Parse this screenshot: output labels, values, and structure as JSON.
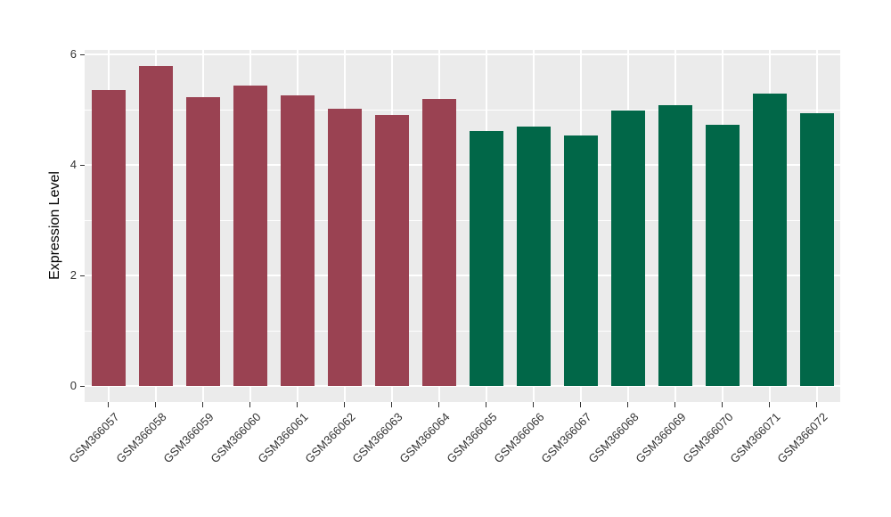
{
  "chart_data": {
    "type": "bar",
    "title": "",
    "xlabel": "",
    "ylabel": "Expression Level",
    "categories": [
      "GSM366057",
      "GSM366058",
      "GSM366059",
      "GSM366060",
      "GSM366061",
      "GSM366062",
      "GSM366063",
      "GSM366064",
      "GSM366065",
      "GSM366066",
      "GSM366067",
      "GSM366068",
      "GSM366069",
      "GSM366070",
      "GSM366071",
      "GSM366072"
    ],
    "values": [
      5.36,
      5.79,
      5.23,
      5.44,
      5.26,
      5.01,
      4.9,
      5.2,
      4.61,
      4.69,
      4.53,
      4.98,
      5.08,
      4.73,
      5.29,
      4.94
    ],
    "colors": [
      "#9A4252",
      "#9A4252",
      "#9A4252",
      "#9A4252",
      "#9A4252",
      "#9A4252",
      "#9A4252",
      "#9A4252",
      "#016748",
      "#016748",
      "#016748",
      "#016748",
      "#016748",
      "#016748",
      "#016748",
      "#016748"
    ],
    "ylim": [
      -0.29,
      6.08
    ],
    "yticks": [
      0,
      2,
      4,
      6
    ],
    "yticks_minor": [
      1,
      3,
      5
    ],
    "xtick_angle_deg": 45,
    "grid": true,
    "legend_position": "none",
    "panel_bg": "#EBEBEB",
    "grid_color": "#FFFFFF"
  }
}
